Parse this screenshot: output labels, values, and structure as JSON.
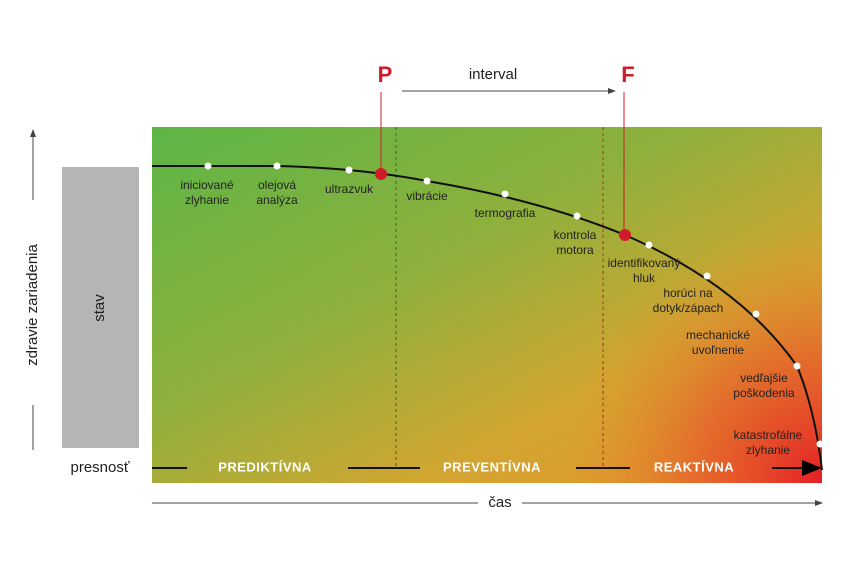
{
  "markers": {
    "p": "P",
    "f": "F",
    "interval": "interval"
  },
  "left": {
    "box": "stav",
    "axis": "zdravie zariadenia",
    "accuracy": "presnosť"
  },
  "bands": [
    "PREDIKTÍVNA",
    "PREVENTÍVNA",
    "REAKTÍVNA"
  ],
  "x_axis": "čas",
  "points": [
    {
      "label": [
        "iniciované",
        "zlyhanie"
      ]
    },
    {
      "label": [
        "olejová",
        "analýza"
      ]
    },
    {
      "label": [
        "ultrazvuk"
      ]
    },
    {
      "label": [
        "vibrácie"
      ]
    },
    {
      "label": [
        "termografia"
      ]
    },
    {
      "label": [
        "kontrola",
        "motora"
      ]
    },
    {
      "label": [
        "identifikovaný",
        "hluk"
      ]
    },
    {
      "label": [
        "horúci na",
        "dotyk/zápach"
      ]
    },
    {
      "label": [
        "mechanické",
        "uvoľnenie"
      ]
    },
    {
      "label": [
        "vedľajšie",
        "poškodenia"
      ]
    },
    {
      "label": [
        "katastrofálne",
        "zlyhanie"
      ]
    }
  ]
}
